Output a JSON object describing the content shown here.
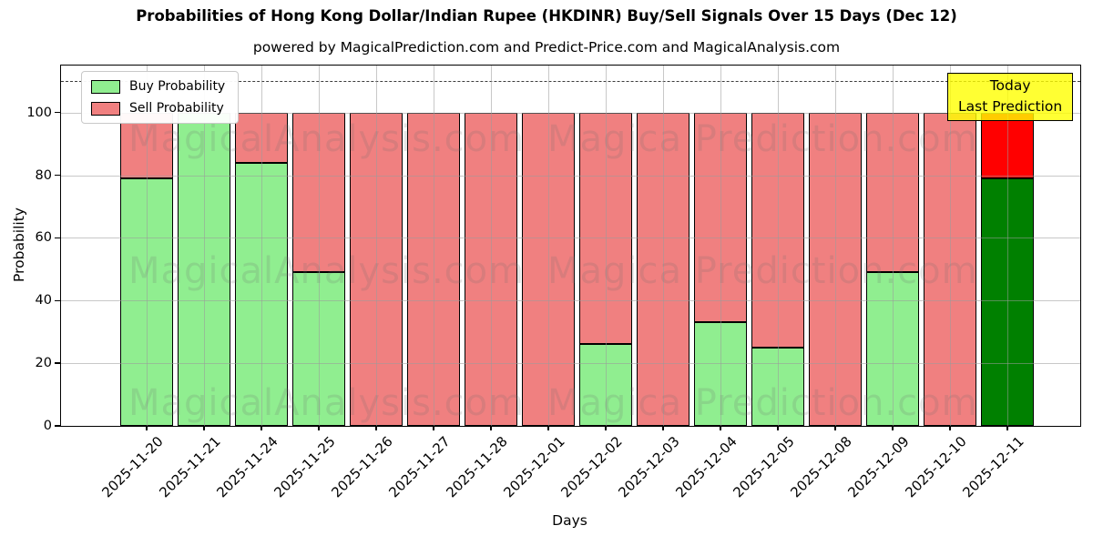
{
  "title": "Probabilities of Hong Kong Dollar/Indian Rupee (HKDINR) Buy/Sell Signals Over 15 Days (Dec 12)",
  "subtitle": "powered by MagicalPrediction.com and Predict-Price.com and MagicalAnalysis.com",
  "axes": {
    "x_label": "Days",
    "y_label": "Probability",
    "y_ticks": [
      0,
      20,
      40,
      60,
      80,
      100
    ]
  },
  "legend": {
    "items": [
      {
        "label": "Buy Probability",
        "color": "#90ee90"
      },
      {
        "label": "Sell Probability",
        "color": "#f08080"
      }
    ]
  },
  "annotation": {
    "line1": "Today",
    "line2": "Last Prediction",
    "bg_color": "#ffff00",
    "border_color": "#000000"
  },
  "watermarks": {
    "left_text": "MagicalAnalysis.com",
    "right_text": "Magica Prediction.com"
  },
  "chart_data": {
    "type": "bar",
    "stacked": true,
    "title": "Probabilities of Hong Kong Dollar/Indian Rupee (HKDINR) Buy/Sell Signals Over 15 Days (Dec 12)",
    "xlabel": "Days",
    "ylabel": "Probability",
    "ylim": [
      0,
      115
    ],
    "y_ticks": [
      0,
      20,
      40,
      60,
      80,
      100
    ],
    "dashed_hline_y": 110,
    "grid": true,
    "legend_position": "upper-left",
    "categories": [
      "2025-11-20",
      "2025-11-21",
      "2025-11-24",
      "2025-11-25",
      "2025-11-26",
      "2025-11-27",
      "2025-11-28",
      "2025-12-01",
      "2025-12-02",
      "2025-12-03",
      "2025-12-04",
      "2025-12-05",
      "2025-12-08",
      "2025-12-09",
      "2025-12-10",
      "2025-12-11"
    ],
    "series": [
      {
        "name": "Buy Probability",
        "color": "#90ee90",
        "today_color": "#008000",
        "values": [
          79,
          100,
          84,
          49,
          0,
          0,
          0,
          0,
          26,
          0,
          33,
          25,
          0,
          49,
          0,
          79
        ]
      },
      {
        "name": "Sell Probability",
        "color": "#f08080",
        "today_color": "#ff0000",
        "values": [
          21,
          0,
          16,
          51,
          100,
          100,
          100,
          100,
          74,
          100,
          67,
          75,
          100,
          51,
          100,
          21
        ]
      }
    ],
    "today_index": 15,
    "bar_edge_color": "#000000"
  }
}
